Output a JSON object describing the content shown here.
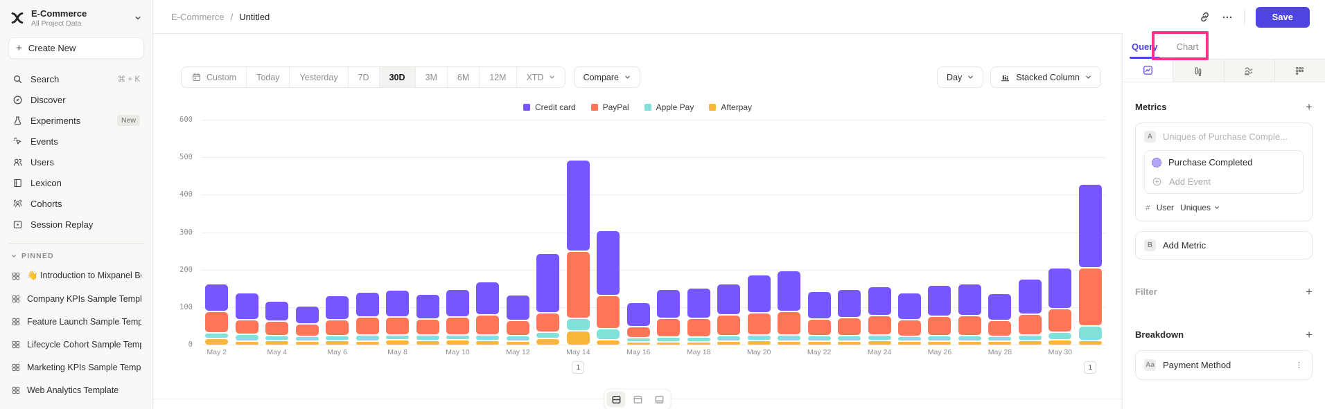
{
  "colors": {
    "accent": "#4f44e0",
    "highlight": "#f5348b",
    "sidebar_bg": "#f9f8f6"
  },
  "sidebar": {
    "project": {
      "name": "E-Commerce",
      "subtitle": "All Project Data"
    },
    "create_new": "Create New",
    "items": [
      {
        "label": "Search",
        "icon": "search",
        "shortcut": "⌘ + K"
      },
      {
        "label": "Discover",
        "icon": "discover"
      },
      {
        "label": "Experiments",
        "icon": "flask",
        "badge": "New"
      },
      {
        "label": "Events",
        "icon": "events"
      },
      {
        "label": "Users",
        "icon": "users"
      },
      {
        "label": "Lexicon",
        "icon": "lexicon"
      },
      {
        "label": "Cohorts",
        "icon": "cohorts"
      },
      {
        "label": "Session Replay",
        "icon": "replay"
      }
    ],
    "pinned": {
      "header": "PINNED",
      "items": [
        "👋 Introduction to Mixpanel Bo",
        "Company KPIs Sample Templat",
        "Feature Launch Sample Templa",
        "Lifecycle Cohort Sample Temp",
        "Marketing KPIs Sample Templat",
        "Web Analytics Template"
      ]
    }
  },
  "header": {
    "breadcrumb": {
      "project": "E-Commerce",
      "separator": "/",
      "page": "Untitled"
    },
    "save": "Save"
  },
  "toolbar": {
    "date_ranges": [
      "Custom",
      "Today",
      "Yesterday",
      "7D",
      "30D",
      "3M",
      "6M",
      "12M",
      "XTD"
    ],
    "active_range": "30D",
    "compare": "Compare",
    "granularity": "Day",
    "chart_type": "Stacked Column"
  },
  "right_panel": {
    "tabs": [
      {
        "label": "Query",
        "active": true
      },
      {
        "label": "Chart",
        "active": false
      }
    ],
    "highlighted_tab": "Chart",
    "view_tabs": [
      {
        "icon": "insights",
        "active": true
      },
      {
        "icon": "bar-chart",
        "active": false
      },
      {
        "icon": "flows",
        "active": false
      },
      {
        "icon": "retention",
        "active": false
      }
    ],
    "metrics": {
      "title": "Metrics",
      "metric_a": {
        "badge": "A",
        "summary": "Uniques of Purchase Comple...",
        "event": "Purchase Completed",
        "add_event": "Add Event",
        "measure_prefix": "#",
        "measure_entity": "User",
        "measure_type": "Uniques"
      },
      "metric_b": {
        "badge": "B",
        "label": "Add Metric"
      }
    },
    "filter": {
      "title": "Filter"
    },
    "breakdown": {
      "title": "Breakdown",
      "items": [
        {
          "badge": "Aa",
          "label": "Payment Method"
        }
      ]
    }
  },
  "chart_data": {
    "type": "bar",
    "stacked": true,
    "title": "",
    "xlabel": "",
    "ylabel": "",
    "ylim": [
      0,
      600
    ],
    "yticks": [
      0,
      100,
      200,
      300,
      400,
      500,
      600
    ],
    "grid": true,
    "legend_position": "top-center",
    "categories": [
      "May 2",
      "May 3",
      "May 4",
      "May 5",
      "May 6",
      "May 7",
      "May 8",
      "May 9",
      "May 10",
      "May 11",
      "May 12",
      "May 13",
      "May 14",
      "May 15",
      "May 16",
      "May 17",
      "May 18",
      "May 19",
      "May 20",
      "May 21",
      "May 22",
      "May 23",
      "May 24",
      "May 25",
      "May 26",
      "May 27",
      "May 28",
      "May 29",
      "May 30",
      "May 31"
    ],
    "x_tick_labels": [
      "May 2",
      "May 4",
      "May 6",
      "May 8",
      "May 10",
      "May 12",
      "May 14",
      "May 16",
      "May 18",
      "May 20",
      "May 22",
      "May 24",
      "May 26",
      "May 28",
      "May 30"
    ],
    "stack_order_bottom_to_top": [
      "Afterpay",
      "Apple Pay",
      "PayPal",
      "Credit card"
    ],
    "series": [
      {
        "name": "Credit card",
        "color": "#7856ff",
        "values": [
          70,
          67,
          50,
          45,
          60,
          62,
          68,
          62,
          70,
          85,
          64,
          155,
          240,
          170,
          62,
          75,
          78,
          80,
          98,
          105,
          70,
          72,
          75,
          68,
          80,
          82,
          68,
          90,
          105,
          220
        ]
      },
      {
        "name": "PayPal",
        "color": "#ff7557",
        "values": [
          55,
          35,
          35,
          30,
          40,
          45,
          45,
          40,
          45,
          50,
          38,
          48,
          175,
          85,
          25,
          45,
          45,
          52,
          55,
          60,
          42,
          45,
          48,
          42,
          48,
          50,
          40,
          52,
          60,
          150
        ]
      },
      {
        "name": "Apple Pay",
        "color": "#80e1d9",
        "values": [
          10,
          15,
          8,
          8,
          8,
          12,
          8,
          10,
          8,
          10,
          10,
          12,
          30,
          25,
          8,
          10,
          10,
          10,
          10,
          12,
          10,
          10,
          10,
          8,
          10,
          10,
          8,
          10,
          15,
          35
        ]
      },
      {
        "name": "Afterpay",
        "color": "#f8b73a",
        "values": [
          15,
          8,
          10,
          8,
          10,
          8,
          12,
          10,
          12,
          10,
          8,
          15,
          35,
          12,
          5,
          5,
          5,
          8,
          10,
          8,
          8,
          8,
          10,
          8,
          8,
          8,
          8,
          10,
          12,
          10
        ]
      }
    ],
    "annotations": [
      {
        "category": "May 14",
        "label": "1"
      },
      {
        "category": "May 31",
        "label": "1"
      }
    ]
  }
}
